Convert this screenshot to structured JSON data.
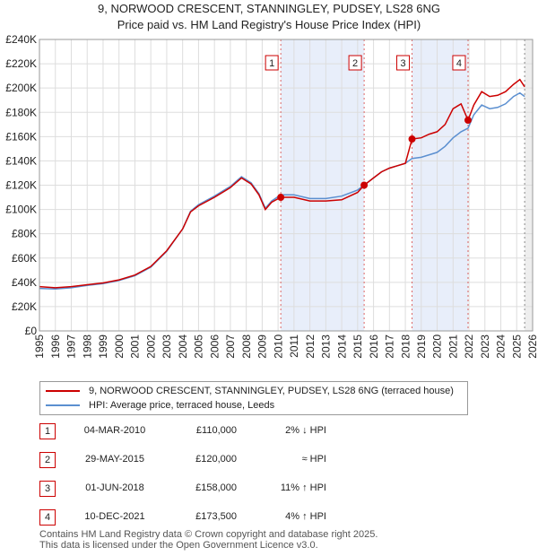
{
  "chart_data": {
    "type": "line",
    "title": "9, NORWOOD CRESCENT, STANNINGLEY, PUDSEY, LS28 6NG",
    "subtitle": "Price paid vs. HM Land Registry's House Price Index (HPI)",
    "xlabel": "",
    "ylabel": "",
    "xlim": [
      1995,
      2026
    ],
    "ylim": [
      0,
      240000
    ],
    "x_ticks": [
      "1995",
      "1996",
      "1997",
      "1998",
      "1999",
      "2000",
      "2001",
      "2002",
      "2003",
      "2004",
      "2005",
      "2006",
      "2007",
      "2008",
      "2009",
      "2010",
      "2011",
      "2012",
      "2013",
      "2014",
      "2015",
      "2016",
      "2017",
      "2018",
      "2019",
      "2020",
      "2021",
      "2022",
      "2023",
      "2024",
      "2025",
      "2026"
    ],
    "y_ticks": [
      {
        "value": 0,
        "label": "£0"
      },
      {
        "value": 20000,
        "label": "£20K"
      },
      {
        "value": 40000,
        "label": "£40K"
      },
      {
        "value": 60000,
        "label": "£60K"
      },
      {
        "value": 80000,
        "label": "£80K"
      },
      {
        "value": 100000,
        "label": "£100K"
      },
      {
        "value": 120000,
        "label": "£120K"
      },
      {
        "value": 140000,
        "label": "£140K"
      },
      {
        "value": 160000,
        "label": "£160K"
      },
      {
        "value": 180000,
        "label": "£180K"
      },
      {
        "value": 200000,
        "label": "£200K"
      },
      {
        "value": 220000,
        "label": "£220K"
      },
      {
        "value": 240000,
        "label": "£240K"
      }
    ],
    "grid": true,
    "series": [
      {
        "name": "9, NORWOOD CRESCENT, STANNINGLEY, PUDSEY, LS28 6NG (terraced house)",
        "color": "#cc0000",
        "points": [
          [
            1995.0,
            36500
          ],
          [
            1996.0,
            35500
          ],
          [
            1997.0,
            36500
          ],
          [
            1998.0,
            38000
          ],
          [
            1999.0,
            39500
          ],
          [
            2000.0,
            42000
          ],
          [
            2001.0,
            46000
          ],
          [
            2002.0,
            53000
          ],
          [
            2003.0,
            66000
          ],
          [
            2004.0,
            84000
          ],
          [
            2004.5,
            98000
          ],
          [
            2005.0,
            103000
          ],
          [
            2006.0,
            110000
          ],
          [
            2007.0,
            118000
          ],
          [
            2007.7,
            126000
          ],
          [
            2008.3,
            121000
          ],
          [
            2008.8,
            112000
          ],
          [
            2009.2,
            100000
          ],
          [
            2009.6,
            106000
          ],
          [
            2010.17,
            110000
          ],
          [
            2011.0,
            110000
          ],
          [
            2012.0,
            107000
          ],
          [
            2013.0,
            107000
          ],
          [
            2014.0,
            108000
          ],
          [
            2015.0,
            114000
          ],
          [
            2015.41,
            120000
          ],
          [
            2016.0,
            126000
          ],
          [
            2016.5,
            131000
          ],
          [
            2017.0,
            134000
          ],
          [
            2017.5,
            136000
          ],
          [
            2018.0,
            138000
          ],
          [
            2018.42,
            158000
          ],
          [
            2019.0,
            159000
          ],
          [
            2019.5,
            162000
          ],
          [
            2020.0,
            164000
          ],
          [
            2020.5,
            170000
          ],
          [
            2021.0,
            183000
          ],
          [
            2021.5,
            187000
          ],
          [
            2021.94,
            173500
          ],
          [
            2022.3,
            186000
          ],
          [
            2022.8,
            197000
          ],
          [
            2023.3,
            193000
          ],
          [
            2023.8,
            194000
          ],
          [
            2024.3,
            197000
          ],
          [
            2024.8,
            203000
          ],
          [
            2025.2,
            207000
          ],
          [
            2025.5,
            201000
          ]
        ]
      },
      {
        "name": "HPI: Average price, terraced house, Leeds",
        "color": "#5b8fd0",
        "points": [
          [
            1995.0,
            35000
          ],
          [
            1996.0,
            34500
          ],
          [
            1997.0,
            35500
          ],
          [
            1998.0,
            37500
          ],
          [
            1999.0,
            39000
          ],
          [
            2000.0,
            41500
          ],
          [
            2001.0,
            45500
          ],
          [
            2002.0,
            52500
          ],
          [
            2003.0,
            65500
          ],
          [
            2004.0,
            84000
          ],
          [
            2004.5,
            98500
          ],
          [
            2005.0,
            104000
          ],
          [
            2006.0,
            111000
          ],
          [
            2007.0,
            119000
          ],
          [
            2007.7,
            127000
          ],
          [
            2008.3,
            122000
          ],
          [
            2008.8,
            113000
          ],
          [
            2009.2,
            101000
          ],
          [
            2009.6,
            107000
          ],
          [
            2010.17,
            112000
          ],
          [
            2011.0,
            112000
          ],
          [
            2012.0,
            109000
          ],
          [
            2013.0,
            109000
          ],
          [
            2014.0,
            111000
          ],
          [
            2015.0,
            116000
          ],
          [
            2015.41,
            120000
          ],
          [
            2016.0,
            126000
          ],
          [
            2016.5,
            131000
          ],
          [
            2017.0,
            134000
          ],
          [
            2017.5,
            136000
          ],
          [
            2018.0,
            138000
          ],
          [
            2018.42,
            142000
          ],
          [
            2019.0,
            143000
          ],
          [
            2019.5,
            145000
          ],
          [
            2020.0,
            147000
          ],
          [
            2020.5,
            152000
          ],
          [
            2021.0,
            159000
          ],
          [
            2021.5,
            164000
          ],
          [
            2021.94,
            167000
          ],
          [
            2022.3,
            178000
          ],
          [
            2022.8,
            186000
          ],
          [
            2023.3,
            183000
          ],
          [
            2023.8,
            184000
          ],
          [
            2024.3,
            187000
          ],
          [
            2024.8,
            193000
          ],
          [
            2025.2,
            196000
          ],
          [
            2025.5,
            193000
          ]
        ]
      }
    ],
    "transactions": [
      {
        "label": "1",
        "x": 2010.17,
        "price": 110000
      },
      {
        "label": "2",
        "x": 2015.41,
        "price": 120000
      },
      {
        "label": "3",
        "x": 2018.42,
        "price": 158000
      },
      {
        "label": "4",
        "x": 2021.94,
        "price": 173500
      }
    ],
    "highlight_periods": [
      [
        2010.17,
        2015.41
      ],
      [
        2018.42,
        2021.94
      ]
    ],
    "future_from": 2025.5
  },
  "legend": {
    "property": "9, NORWOOD CRESCENT, STANNINGLEY, PUDSEY, LS28 6NG (terraced house)",
    "hpi": "HPI: Average price, terraced house, Leeds"
  },
  "table": [
    {
      "num": "1",
      "date": "04-MAR-2010",
      "price": "£110,000",
      "hpi": "2% ↓ HPI"
    },
    {
      "num": "2",
      "date": "29-MAY-2015",
      "price": "£120,000",
      "hpi": "≈ HPI"
    },
    {
      "num": "3",
      "date": "01-JUN-2018",
      "price": "£158,000",
      "hpi": "11% ↑ HPI"
    },
    {
      "num": "4",
      "date": "10-DEC-2021",
      "price": "£173,500",
      "hpi": "4% ↑ HPI"
    }
  ],
  "footer": {
    "line1": "Contains HM Land Registry data © Crown copyright and database right 2025.",
    "line2": "This data is licensed under the Open Government Licence v3.0."
  }
}
